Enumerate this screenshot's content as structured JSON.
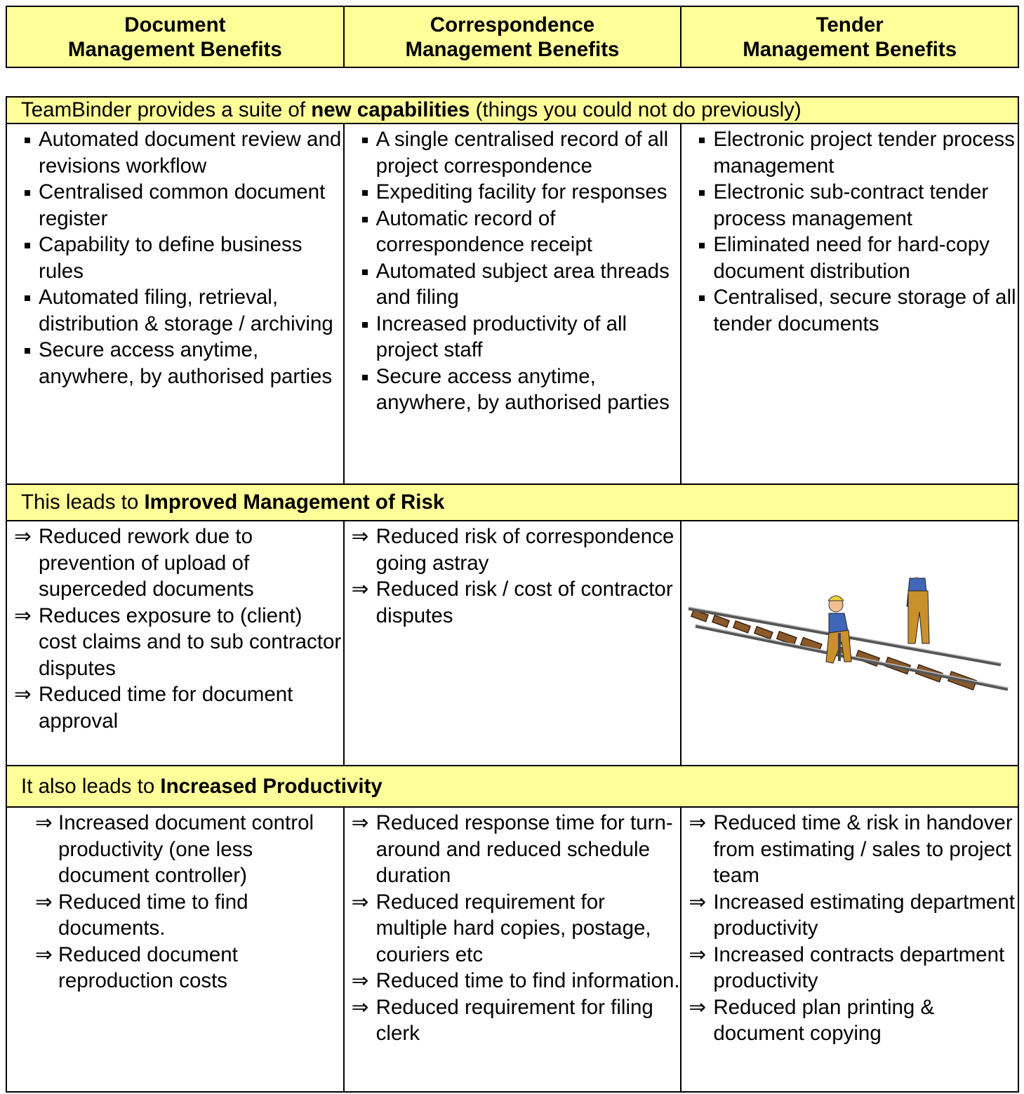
{
  "header": {
    "columns": [
      [
        "Document",
        "Management Benefits"
      ],
      [
        "Correspondence",
        "Management Benefits"
      ],
      [
        "Tender",
        "Management Benefits"
      ]
    ]
  },
  "sections": [
    {
      "heading": {
        "prefix": "TeamBinder provides a suite of ",
        "bold": "new capabilities",
        "suffix": " (things you could not do previously)"
      },
      "columns": [
        [
          "Automated document review and revisions workflow",
          "Centralised common document register",
          "Capability to define business rules",
          "Automated filing, retrieval, distribution & storage / archiving",
          "Secure access anytime, anywhere, by authorised parties"
        ],
        [
          "A single centralised record of all project correspondence",
          "Expediting facility for responses",
          "Automatic record of correspondence receipt",
          "Automated subject area threads and filing",
          "Increased productivity of all project staff",
          "Secure access anytime, anywhere, by authorised parties"
        ],
        [
          "Electronic project tender process management",
          "Electronic sub-contract tender process management",
          "Eliminated need for hard-copy document distribution",
          "Centralised, secure storage of all tender documents"
        ]
      ]
    },
    {
      "heading": {
        "prefix": "This leads to ",
        "bold": "Improved Management of Risk",
        "suffix": ""
      },
      "columns": [
        [
          "Reduced rework due to prevention of upload of superceded documents",
          "Reduces exposure to (client) cost claims and to sub contractor disputes",
          "Reduced time for document approval"
        ],
        [
          "Reduced risk of correspondence going astray",
          "Reduced risk / cost of contractor disputes"
        ],
        []
      ]
    },
    {
      "heading": {
        "prefix": "It also leads to ",
        "bold": "Increased Productivity",
        "suffix": ""
      },
      "columns": [
        [
          "Increased document control productivity (one less document controller)",
          "Reduced time to find documents.",
          "Reduced document reproduction costs"
        ],
        [
          "Reduced response time for turn-around and reduced schedule duration",
          "Reduced requirement for multiple hard copies, postage, couriers etc",
          "Reduced time to find information.",
          "Reduced requirement for filing clerk"
        ],
        [
          "Reduced time & risk in handover from estimating / sales to project team",
          "Increased estimating department productivity",
          "Increased contracts department productivity",
          "Reduced plan printing & document copying"
        ]
      ]
    }
  ]
}
